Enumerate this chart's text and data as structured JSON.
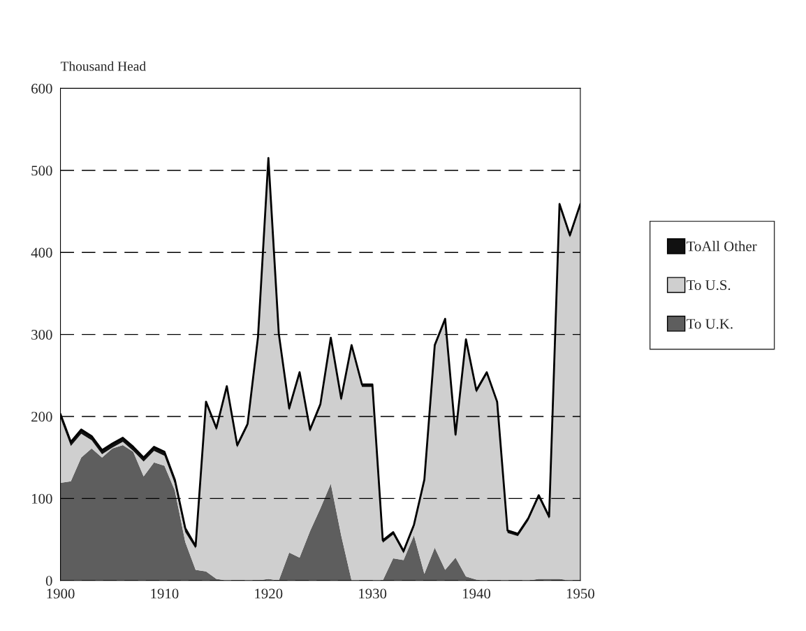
{
  "chart_data": {
    "type": "area",
    "stacked": true,
    "ylabel": "Thousand Head",
    "x": [
      1900,
      1901,
      1902,
      1903,
      1904,
      1905,
      1906,
      1907,
      1908,
      1909,
      1910,
      1911,
      1912,
      1913,
      1914,
      1915,
      1916,
      1917,
      1918,
      1919,
      1920,
      1921,
      1922,
      1923,
      1924,
      1925,
      1926,
      1927,
      1928,
      1929,
      1930,
      1931,
      1932,
      1933,
      1934,
      1935,
      1936,
      1937,
      1938,
      1939,
      1940,
      1941,
      1942,
      1943,
      1944,
      1945,
      1946,
      1947,
      1948,
      1949,
      1950
    ],
    "series": [
      {
        "name": "To U.K.",
        "color": "#5e5e5e",
        "values": [
          119,
          121,
          150,
          161,
          150,
          161,
          165,
          157,
          127,
          144,
          140,
          110,
          47,
          13,
          11,
          2,
          0,
          0,
          0,
          0,
          2,
          0,
          34,
          28,
          60,
          88,
          118,
          55,
          0,
          0,
          0,
          0,
          27,
          25,
          55,
          8,
          40,
          13,
          28,
          5,
          1,
          0,
          0,
          0,
          0,
          0,
          2,
          2,
          2,
          0,
          0
        ]
      },
      {
        "name": "To U.S.",
        "color": "#cfcfcf",
        "values": [
          79,
          43,
          29,
          10,
          4,
          1,
          4,
          1,
          18,
          14,
          12,
          8,
          12,
          26,
          204,
          181,
          234,
          162,
          188,
          294,
          510,
          298,
          173,
          223,
          121,
          124,
          175,
          164,
          284,
          236,
          236,
          46,
          29,
          8,
          10,
          112,
          244,
          303,
          147,
          286,
          228,
          251,
          215,
          58,
          54,
          73,
          99,
          73,
          454,
          418,
          456
        ]
      },
      {
        "name": "ToAll Other",
        "color": "#111111",
        "values": [
          5,
          5,
          5,
          5,
          5,
          5,
          5,
          5,
          5,
          5,
          5,
          5,
          5,
          3,
          3,
          3,
          3,
          3,
          3,
          3,
          3,
          3,
          3,
          3,
          3,
          3,
          3,
          3,
          3,
          3,
          3,
          3,
          3,
          3,
          3,
          3,
          3,
          3,
          3,
          3,
          3,
          3,
          3,
          3,
          3,
          3,
          3,
          3,
          3,
          3,
          3
        ]
      }
    ],
    "xlim": [
      1900,
      1950
    ],
    "xticks": [
      1900,
      1910,
      1920,
      1930,
      1940,
      1950
    ],
    "ylim": [
      0,
      600
    ],
    "yticks": [
      0,
      100,
      200,
      300,
      400,
      500,
      600
    ],
    "grid": "y",
    "line_style": "dashed",
    "legend": "right"
  }
}
